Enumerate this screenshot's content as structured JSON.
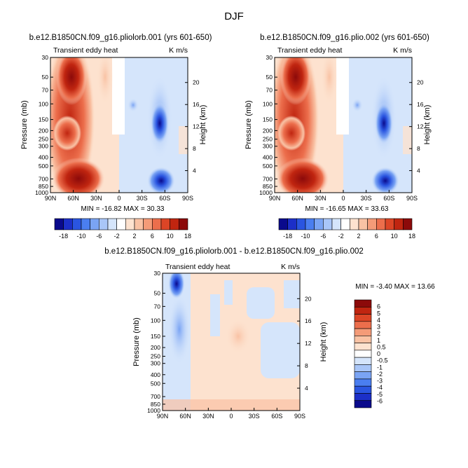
{
  "figure": {
    "season": "DJF"
  },
  "chart_data": [
    {
      "type": "contour",
      "title": "b.e12.B1850CN.f09_g16.pliolorb.001 (yrs 601-650)",
      "left_label": "Transient eddy heat",
      "right_label": "K m/s",
      "xlabel": "",
      "ylabel": "Pressure (mb)",
      "ylabel_right": "Height (km)",
      "x_ticks": [
        "90N",
        "60N",
        "30N",
        "0",
        "30S",
        "60S",
        "90S"
      ],
      "y_ticks": [
        "30",
        "50",
        "70",
        "100",
        "150",
        "200",
        "250",
        "300",
        "400",
        "500",
        "700",
        "850",
        "1000"
      ],
      "y_ticks_right": [
        "20",
        "16",
        "12",
        "8",
        "4"
      ],
      "stats": "MIN = -16.82   MAX = 30.33",
      "min": -16.82,
      "max": 30.33
    },
    {
      "type": "contour",
      "title": "b.e12.B1850CN.f09_g16.plio.002 (yrs 601-650)",
      "left_label": "Transient eddy heat",
      "right_label": "K m/s",
      "xlabel": "",
      "ylabel": "Pressure (mb)",
      "ylabel_right": "Height (km)",
      "x_ticks": [
        "90N",
        "60N",
        "30N",
        "0",
        "30S",
        "60S",
        "90S"
      ],
      "y_ticks": [
        "30",
        "50",
        "70",
        "100",
        "150",
        "200",
        "250",
        "300",
        "400",
        "500",
        "700",
        "850",
        "1000"
      ],
      "y_ticks_right": [
        "20",
        "16",
        "12",
        "8",
        "4"
      ],
      "stats": "MIN = -16.65   MAX = 33.63",
      "min": -16.65,
      "max": 33.63
    },
    {
      "type": "contour",
      "title": "b.e12.B1850CN.f09_g16.pliolorb.001 - b.e12.B1850CN.f09_g16.plio.002",
      "left_label": "Transient eddy heat",
      "right_label": "K m/s",
      "xlabel": "",
      "ylabel": "Pressure (mb)",
      "ylabel_right": "Height (km)",
      "x_ticks": [
        "90N",
        "60N",
        "30N",
        "0",
        "30S",
        "60S",
        "90S"
      ],
      "y_ticks": [
        "30",
        "50",
        "70",
        "100",
        "150",
        "200",
        "250",
        "300",
        "400",
        "500",
        "700",
        "850",
        "1000"
      ],
      "y_ticks_right": [
        "20",
        "16",
        "12",
        "8",
        "4"
      ],
      "stats": "MIN = -3.40   MAX = 13.66",
      "min": -3.4,
      "max": 13.66
    }
  ],
  "colorbars": {
    "absolute": {
      "colors": [
        "#0a0a8c",
        "#1c2fc8",
        "#2a55e0",
        "#4a7ef0",
        "#7aa4f4",
        "#a9c6f8",
        "#d5e5fb",
        "#ffffff",
        "#fde2cf",
        "#f9c2a4",
        "#f49b78",
        "#ec6e4c",
        "#dc4526",
        "#c02510",
        "#8c0a0a"
      ],
      "labels": [
        "-18",
        "-10",
        "-6",
        "-2",
        "2",
        "6",
        "10",
        "18"
      ]
    },
    "difference": {
      "colors": [
        "#0a0a8c",
        "#1c2fc8",
        "#2a55e0",
        "#4a7ef0",
        "#7aa4f4",
        "#a9c6f8",
        "#d5e5fb",
        "#ffffff",
        "#fde2cf",
        "#f9c2a4",
        "#f49b78",
        "#ec6e4c",
        "#dc4526",
        "#c02510",
        "#8c0a0a"
      ],
      "labels": [
        "6",
        "5",
        "4",
        "3",
        "2",
        "1",
        "0.5",
        "0",
        "-0.5",
        "-1",
        "-2",
        "-3",
        "-4",
        "-5",
        "-6"
      ]
    }
  }
}
